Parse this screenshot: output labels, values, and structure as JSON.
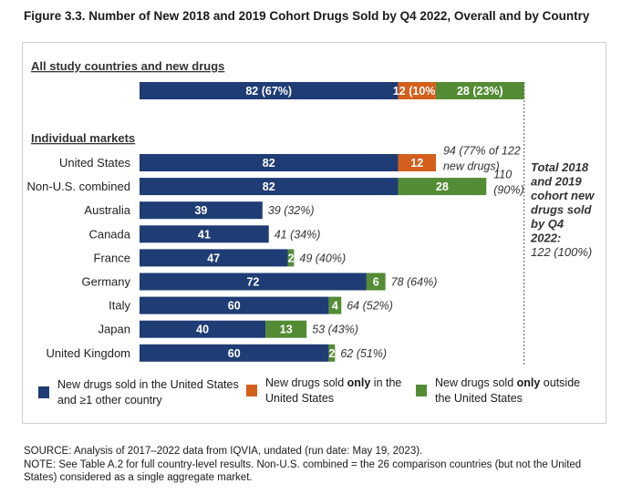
{
  "figure_title": "Figure 3.3. Number of New 2018 and 2019 Cohort Drugs Sold by Q4 2022, Overall and by Country",
  "colors": {
    "us_and_other": "#1f3c74",
    "us_only": "#d35f1c",
    "outside_us_only": "#548b35"
  },
  "chart_data": {
    "type": "bar",
    "orientation": "horizontal",
    "stacked": true,
    "sections": {
      "overall_heading": "All study countries and new drugs",
      "markets_heading": "Individual markets"
    },
    "overall": {
      "values": [
        82,
        12,
        28
      ],
      "labels": [
        "82 (67%)",
        "12 (10%)",
        "28 (23%)"
      ]
    },
    "categories": [
      "United States",
      "Non-U.S. combined",
      "Australia",
      "Canada",
      "France",
      "Germany",
      "Italy",
      "Japan",
      "United Kingdom"
    ],
    "series": [
      {
        "name": "New drugs sold in the United States and ≥1 other country",
        "values": [
          82,
          82,
          39,
          41,
          47,
          72,
          60,
          40,
          60
        ]
      },
      {
        "name": "New drugs sold only in the United States",
        "values": [
          12,
          0,
          0,
          0,
          0,
          0,
          0,
          0,
          0
        ]
      },
      {
        "name": "New drugs sold only outside the United States",
        "values": [
          0,
          28,
          0,
          0,
          2,
          6,
          4,
          13,
          2
        ]
      }
    ],
    "total_labels": [
      [
        "94 (77% of 122",
        "new drugs)"
      ],
      [
        "110",
        "(90%)"
      ],
      [
        "39 (32%)"
      ],
      [
        "41 (34%)"
      ],
      [
        "49 (40%)"
      ],
      [
        "78 (64%)"
      ],
      [
        "64 (52%)"
      ],
      [
        "53 (43%)"
      ],
      [
        "62 (51%)"
      ]
    ],
    "total_annotation": [
      "Total 2018",
      "and 2019",
      "cohort new",
      "drugs sold",
      "by Q4",
      "2022:"
    ],
    "total_annotation_value": "122 (100%)",
    "total": 122,
    "xlim": [
      0,
      122
    ],
    "grid": false
  },
  "legend": {
    "items": [
      {
        "line1": "New drugs sold in the United States",
        "line2": "and ≥1 other country",
        "color": "#1f3c74"
      },
      {
        "line1_pre": "New drugs sold ",
        "line1_bold": "only",
        "line1_post": " in the",
        "line2": "United States",
        "color": "#d35f1c"
      },
      {
        "line1_pre": "New drugs sold ",
        "line1_bold": "only",
        "line1_post": " outside",
        "line2": "the United States",
        "color": "#548b35"
      }
    ]
  },
  "notes": {
    "source": "SOURCE: Analysis of 2017–2022 data from IQVIA, undated (run date: May 19, 2023).",
    "note": "NOTE: See Table A.2 for full country-level results. Non-U.S. combined = the 26 comparison countries (but not the United States) considered as a single aggregate market."
  }
}
